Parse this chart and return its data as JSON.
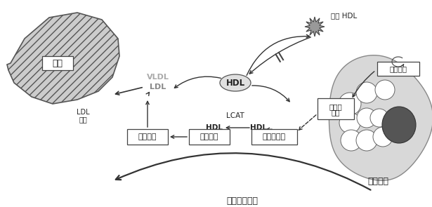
{
  "bg_color": "#ffffff",
  "title_bottom": "胆固醇逆转运",
  "liver_label": "肝脏",
  "ldl_receptor_line1": "LDL",
  "ldl_receptor_line2": "受体",
  "vldl_label": "VLDL",
  "ldl_label": "LDL",
  "box1_label": "胆固醇酯",
  "box2_label": "胆固醇酯",
  "box3_label": "游离胆固醇",
  "hdl_top": "HDL",
  "hdl_left": "HDL",
  "hdl_right": "HDL",
  "lcat_label": "LCAT",
  "oxidized_hdl_line1": "氧化 HDL",
  "foam_cell_label": "泡沫细胞",
  "cholesterol_ester_foam": "胆固醇酯",
  "free_chol_foam_line1": "游离胆",
  "free_chol_foam_line2": "固醇",
  "foam_color": "#cccccc",
  "box_facecolor": "#ffffff",
  "box_edgecolor": "#444444",
  "liver_hatch": "///",
  "liver_facecolor": "#cccccc",
  "liver_edgecolor": "#555555",
  "arrow_color": "#333333",
  "text_color": "#222222"
}
